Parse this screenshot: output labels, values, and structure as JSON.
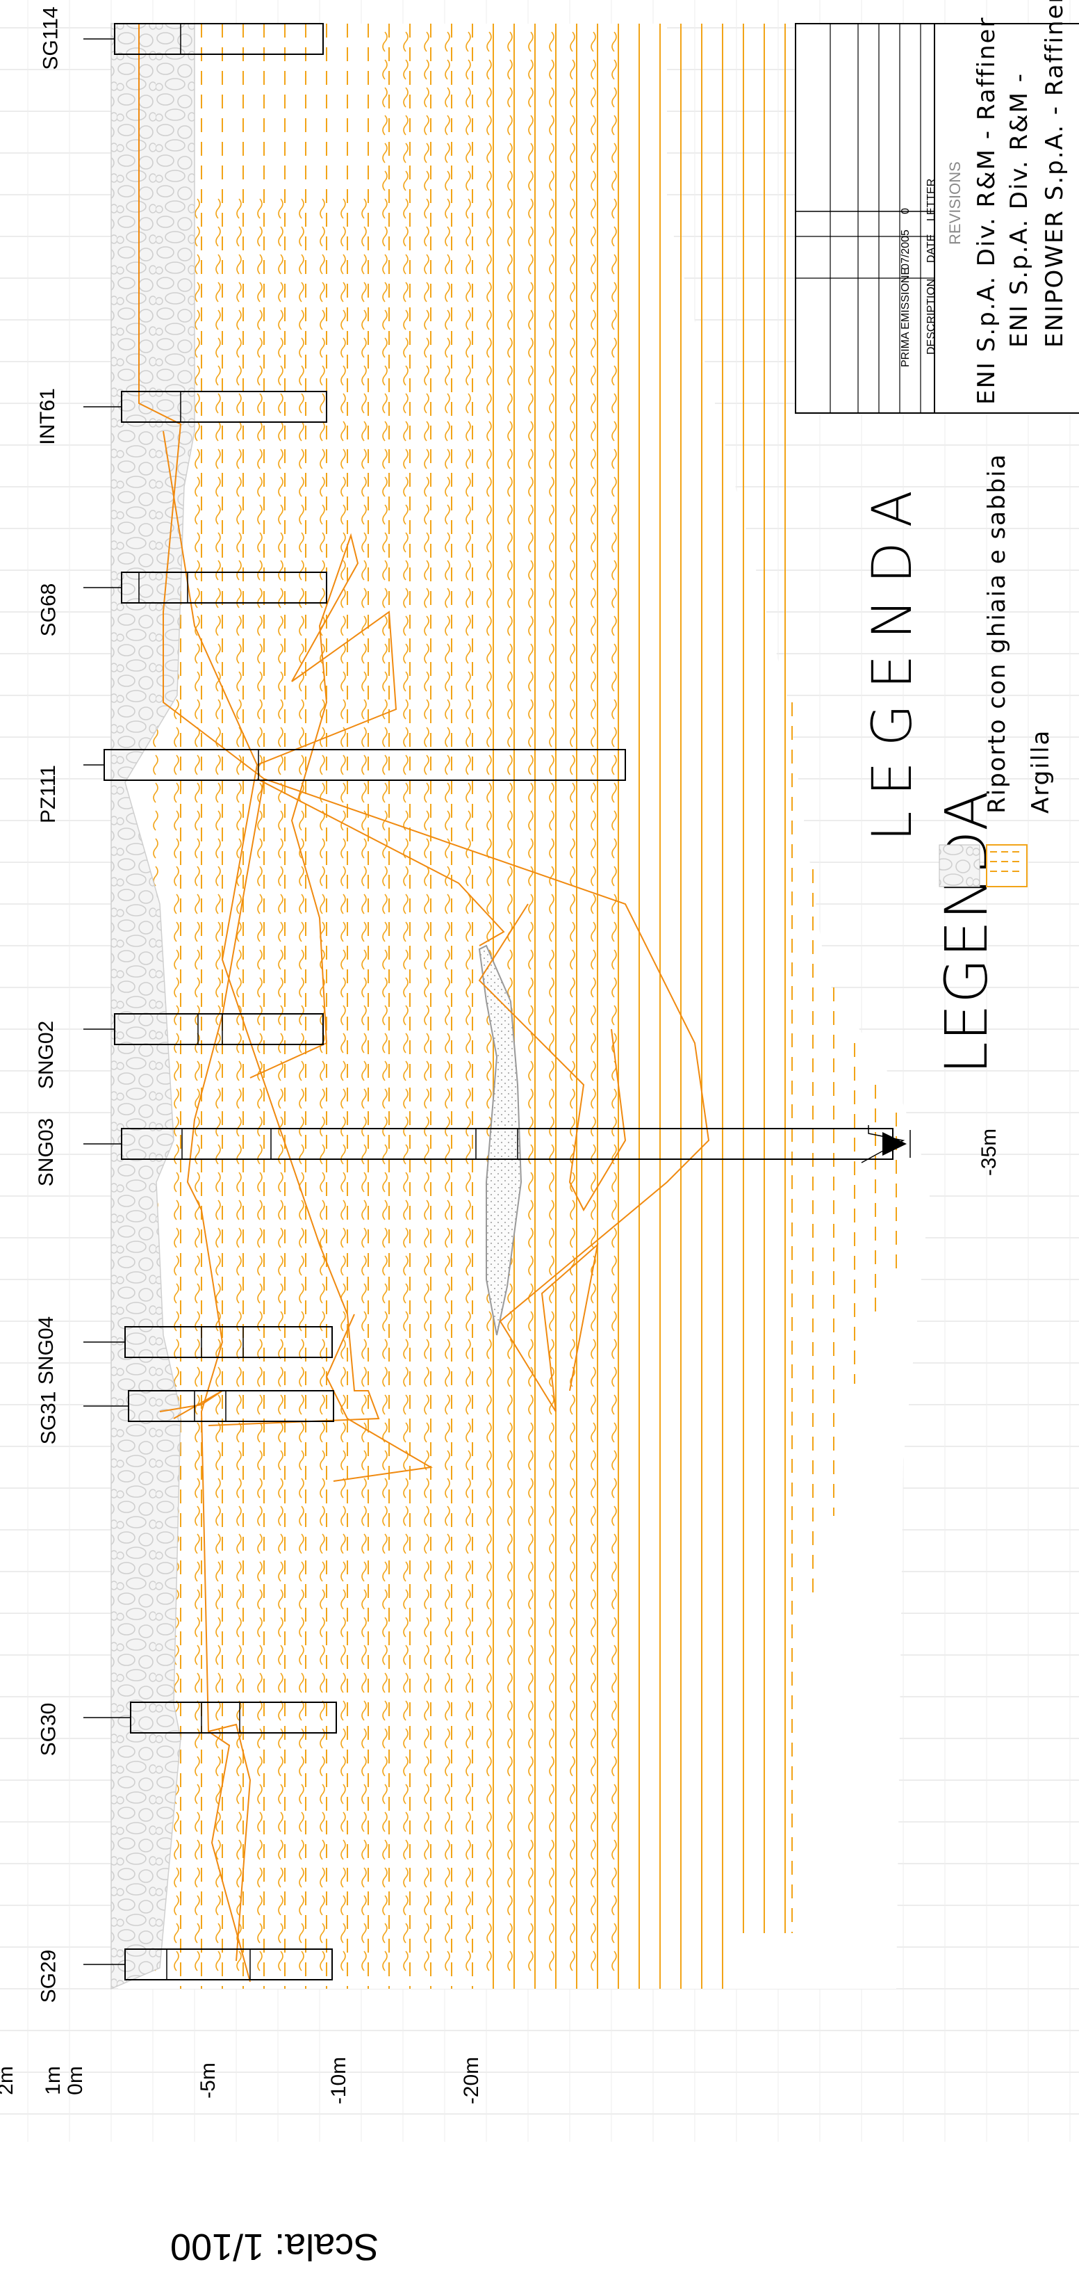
{
  "scale_label": "Scala: 1/100",
  "depth_ticks": [
    "2m",
    "1m",
    "0m",
    "-5m",
    "-10m",
    "-20m"
  ],
  "boreholes": [
    "SG114",
    "INT61",
    "SG68",
    "PZ111",
    "SNG02",
    "SNG03",
    "SNG04",
    "SG31",
    "SG30",
    "SG29"
  ],
  "deep_marker": "-35m",
  "legend": {
    "title": "LEGENDA",
    "items": [
      "Riporto con ghiaia e sabbia",
      "Argilla"
    ]
  },
  "revisions": {
    "heading": "REVISIONS",
    "header": {
      "letter": "LETTER",
      "date": "DATE",
      "description": "DESCRIPTION"
    },
    "row": {
      "letter": "0",
      "date": "07/2005",
      "description": "PRIMA EMISSIONE"
    }
  },
  "title_block": [
    "ENI S.p.A. Div. R&M - Raffiner",
    "ENI S.p.A. Div. R&M -",
    "ENIPOWER S.p.A. - Raffineria"
  ],
  "colors": {
    "clay": "#f2a418",
    "interface": "#f08a10",
    "fill_stroke": "#cfcfcf",
    "sand": "#aaaaaa",
    "grid": "#d9d9d9"
  }
}
